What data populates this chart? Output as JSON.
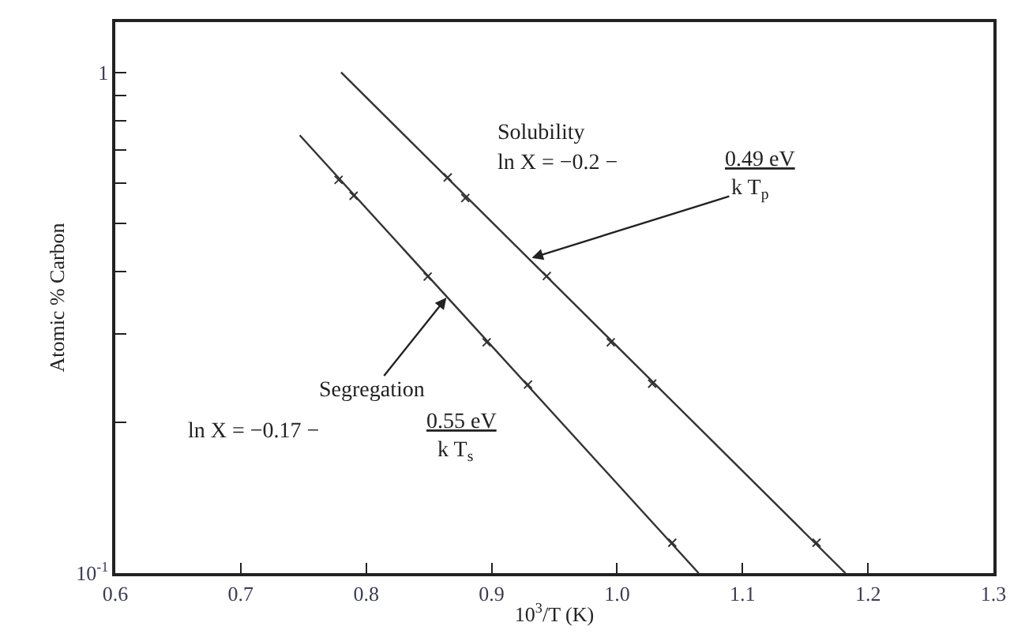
{
  "chart_data": {
    "type": "line",
    "xlabel": "10$^{3}$/T (K)",
    "ylabel": "Atomic % Carbon",
    "log": "y",
    "xlim": [
      0.6,
      1.3
    ],
    "xticks": [
      0.6,
      0.7,
      0.8,
      0.9,
      {
        "value": 1.0,
        "label": "1.0"
      },
      1.1,
      1.2,
      1.3
    ],
    "ylim": [
      0.1,
      1.26
    ],
    "yticks": [
      {
        "value": 0.1,
        "label": "10$^{-1}$"
      },
      {
        "value": 0.2,
        "label": null
      },
      {
        "value": 0.3,
        "label": null
      },
      {
        "value": 0.4,
        "label": null
      },
      {
        "value": 0.5,
        "label": null
      },
      {
        "value": 0.6,
        "label": null
      },
      {
        "value": 0.7,
        "label": null
      },
      {
        "value": 0.8,
        "label": null
      },
      {
        "value": 0.9,
        "label": null
      },
      1
    ],
    "series": [
      {
        "marker": "none",
        "color": "#333333",
        "x": [
          0.78,
          1.182
        ],
        "values": [
          1.0,
          0.1
        ]
      },
      {
        "type": "scatter",
        "marker": "cross",
        "color": "#333333",
        "x": [
          0.865,
          0.879,
          0.944,
          0.995,
          1.028,
          1.159
        ],
        "values": [
          0.617,
          0.561,
          0.392,
          0.289,
          0.239,
          0.115
        ]
      },
      {
        "marker": "none",
        "color": "#333333",
        "x": [
          0.747,
          1.065
        ],
        "values": [
          0.749,
          0.1
        ]
      },
      {
        "type": "scatter",
        "marker": "cross",
        "color": "#333333",
        "x": [
          0.778,
          0.79,
          0.849,
          0.896,
          0.929,
          1.044
        ],
        "values": [
          0.61,
          0.567,
          0.391,
          0.289,
          0.238,
          0.115
        ]
      }
    ],
    "annotations": [
      "Solubility",
      "ln X = −0.2 −",
      "0.49 eV",
      {
        "text": "k T$_{p}$",
        "x": 0.932,
        "y": 0.426
      },
      {
        "text": "Segregation",
        "x": 0.864,
        "y": 0.355
      },
      "ln X = −0.17 −",
      "0.55 eV",
      "k T$_{s}$"
    ]
  }
}
